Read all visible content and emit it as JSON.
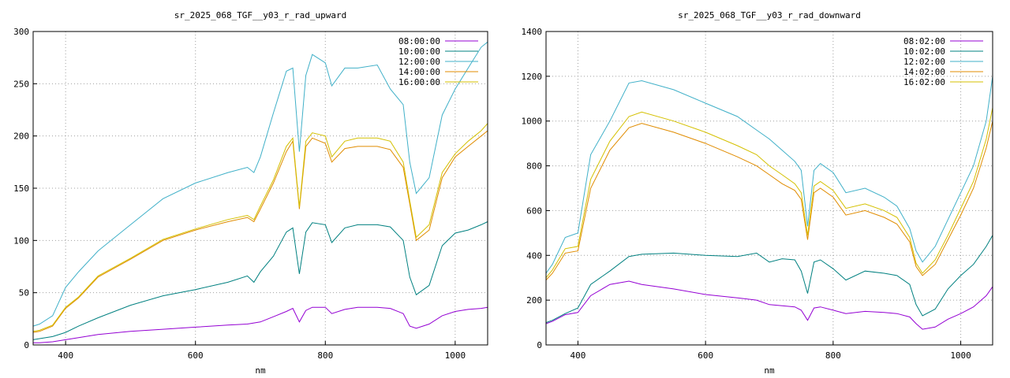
{
  "chart_data": [
    {
      "type": "line",
      "title": "sr_2025_068_TGF__y03_r_rad_upward",
      "xlabel": "nm",
      "ylabel": "",
      "xlim": [
        350,
        1050
      ],
      "ylim": [
        0,
        300
      ],
      "xticks": [
        400,
        600,
        800,
        1000
      ],
      "yticks": [
        0,
        50,
        100,
        150,
        200,
        250,
        300
      ],
      "grid": true,
      "legend": "top-right",
      "series": [
        {
          "name": "08:00:00",
          "color": "#9400d3",
          "x": [
            350,
            360,
            380,
            400,
            420,
            450,
            500,
            550,
            600,
            650,
            680,
            700,
            720,
            740,
            750,
            760,
            770,
            780,
            800,
            810,
            830,
            850,
            880,
            900,
            920,
            930,
            940,
            960,
            980,
            1000,
            1020,
            1040,
            1050
          ],
          "y": [
            2,
            2,
            3,
            5,
            7,
            10,
            13,
            15,
            17,
            19,
            20,
            22,
            27,
            32,
            35,
            22,
            33,
            36,
            36,
            30,
            34,
            36,
            36,
            35,
            30,
            18,
            16,
            20,
            28,
            32,
            34,
            35,
            36
          ]
        },
        {
          "name": "10:00:00",
          "color": "#008080",
          "x": [
            350,
            360,
            380,
            400,
            420,
            450,
            500,
            550,
            600,
            650,
            680,
            690,
            700,
            720,
            740,
            750,
            760,
            770,
            780,
            800,
            810,
            830,
            850,
            880,
            900,
            920,
            930,
            940,
            960,
            980,
            1000,
            1020,
            1040,
            1050
          ],
          "y": [
            5,
            6,
            8,
            12,
            18,
            26,
            38,
            47,
            53,
            60,
            66,
            60,
            70,
            85,
            108,
            112,
            68,
            108,
            117,
            115,
            98,
            112,
            115,
            115,
            113,
            100,
            65,
            48,
            57,
            95,
            107,
            110,
            115,
            118
          ]
        },
        {
          "name": "12:00:00",
          "color": "#40b0c8",
          "x": [
            350,
            360,
            380,
            400,
            420,
            450,
            500,
            550,
            600,
            650,
            680,
            690,
            700,
            720,
            740,
            750,
            760,
            770,
            780,
            800,
            810,
            830,
            850,
            880,
            900,
            920,
            930,
            940,
            960,
            980,
            1000,
            1020,
            1040,
            1050
          ],
          "y": [
            18,
            20,
            28,
            55,
            70,
            90,
            115,
            140,
            155,
            165,
            170,
            165,
            180,
            222,
            262,
            265,
            185,
            258,
            278,
            270,
            248,
            265,
            265,
            268,
            245,
            230,
            175,
            145,
            160,
            220,
            245,
            265,
            285,
            290
          ]
        },
        {
          "name": "14:00:00",
          "color": "#e08c00",
          "x": [
            350,
            360,
            380,
            400,
            420,
            450,
            500,
            550,
            600,
            650,
            680,
            690,
            700,
            720,
            740,
            750,
            760,
            770,
            780,
            800,
            810,
            830,
            850,
            880,
            900,
            920,
            930,
            940,
            960,
            980,
            1000,
            1020,
            1040,
            1050
          ],
          "y": [
            12,
            13,
            18,
            35,
            45,
            65,
            82,
            100,
            110,
            118,
            122,
            118,
            130,
            155,
            185,
            195,
            130,
            190,
            198,
            193,
            175,
            188,
            190,
            190,
            187,
            170,
            135,
            100,
            110,
            160,
            180,
            190,
            200,
            205
          ]
        },
        {
          "name": "16:00:00",
          "color": "#d4c000",
          "x": [
            350,
            360,
            380,
            400,
            420,
            450,
            500,
            550,
            600,
            650,
            680,
            690,
            700,
            720,
            740,
            750,
            760,
            770,
            780,
            800,
            810,
            830,
            850,
            880,
            900,
            920,
            930,
            940,
            960,
            980,
            1000,
            1020,
            1040,
            1050
          ],
          "y": [
            13,
            14,
            19,
            36,
            46,
            66,
            83,
            101,
            111,
            120,
            124,
            120,
            133,
            158,
            190,
            198,
            132,
            195,
            203,
            200,
            180,
            195,
            198,
            198,
            195,
            175,
            138,
            103,
            115,
            165,
            183,
            195,
            205,
            212
          ]
        }
      ]
    },
    {
      "type": "line",
      "title": "sr_2025_068_TGF__y03_r_rad_downward",
      "xlabel": "nm",
      "ylabel": "",
      "xlim": [
        350,
        1050
      ],
      "ylim": [
        0,
        1400
      ],
      "xticks": [
        400,
        600,
        800,
        1000
      ],
      "yticks": [
        0,
        200,
        400,
        600,
        800,
        1000,
        1200,
        1400
      ],
      "grid": true,
      "legend": "top-right",
      "series": [
        {
          "name": "08:02:00",
          "color": "#9400d3",
          "x": [
            350,
            360,
            380,
            400,
            420,
            450,
            480,
            500,
            550,
            600,
            650,
            680,
            700,
            720,
            740,
            750,
            760,
            770,
            780,
            800,
            820,
            850,
            880,
            900,
            920,
            930,
            940,
            960,
            980,
            1000,
            1020,
            1040,
            1050
          ],
          "y": [
            95,
            105,
            135,
            145,
            220,
            270,
            285,
            270,
            250,
            225,
            210,
            200,
            180,
            175,
            170,
            155,
            110,
            165,
            170,
            155,
            140,
            150,
            145,
            140,
            125,
            95,
            70,
            80,
            115,
            140,
            170,
            220,
            260
          ]
        },
        {
          "name": "10:02:00",
          "color": "#008080",
          "x": [
            350,
            360,
            380,
            400,
            420,
            450,
            480,
            500,
            550,
            600,
            650,
            680,
            700,
            720,
            740,
            750,
            760,
            770,
            780,
            800,
            820,
            850,
            880,
            900,
            920,
            930,
            940,
            960,
            980,
            1000,
            1020,
            1040,
            1050
          ],
          "y": [
            100,
            110,
            140,
            165,
            270,
            330,
            395,
            405,
            410,
            400,
            395,
            410,
            370,
            385,
            380,
            330,
            230,
            370,
            380,
            340,
            290,
            330,
            320,
            310,
            270,
            180,
            130,
            160,
            250,
            310,
            360,
            440,
            490
          ]
        },
        {
          "name": "12:02:00",
          "color": "#40b0c8",
          "x": [
            350,
            360,
            380,
            400,
            420,
            450,
            480,
            500,
            550,
            600,
            650,
            680,
            700,
            720,
            740,
            750,
            760,
            770,
            780,
            800,
            820,
            850,
            880,
            900,
            920,
            930,
            940,
            960,
            980,
            1000,
            1020,
            1040,
            1050
          ],
          "y": [
            320,
            360,
            480,
            500,
            850,
            1000,
            1170,
            1180,
            1140,
            1080,
            1020,
            960,
            920,
            870,
            820,
            780,
            530,
            780,
            810,
            770,
            680,
            700,
            660,
            620,
            520,
            420,
            370,
            440,
            560,
            680,
            800,
            1000,
            1200
          ]
        },
        {
          "name": "14:02:00",
          "color": "#e08c00",
          "x": [
            350,
            360,
            380,
            400,
            420,
            450,
            480,
            500,
            550,
            600,
            650,
            680,
            700,
            720,
            740,
            750,
            760,
            770,
            780,
            800,
            820,
            850,
            880,
            900,
            920,
            930,
            940,
            960,
            980,
            1000,
            1020,
            1040,
            1050
          ],
          "y": [
            290,
            320,
            410,
            420,
            700,
            870,
            970,
            990,
            950,
            900,
            840,
            800,
            760,
            720,
            690,
            650,
            470,
            680,
            700,
            660,
            580,
            600,
            570,
            540,
            460,
            350,
            310,
            360,
            470,
            580,
            700,
            880,
            1000
          ]
        },
        {
          "name": "16:02:00",
          "color": "#d4c000",
          "x": [
            350,
            360,
            380,
            400,
            420,
            450,
            480,
            500,
            550,
            600,
            650,
            680,
            700,
            720,
            740,
            750,
            760,
            770,
            780,
            800,
            820,
            850,
            880,
            900,
            920,
            930,
            940,
            960,
            980,
            1000,
            1020,
            1040,
            1050
          ],
          "y": [
            300,
            335,
            430,
            440,
            740,
            910,
            1020,
            1040,
            1000,
            950,
            890,
            850,
            800,
            760,
            720,
            680,
            490,
            710,
            730,
            690,
            610,
            630,
            600,
            570,
            480,
            365,
            320,
            380,
            490,
            610,
            730,
            920,
            1060
          ]
        }
      ]
    }
  ]
}
